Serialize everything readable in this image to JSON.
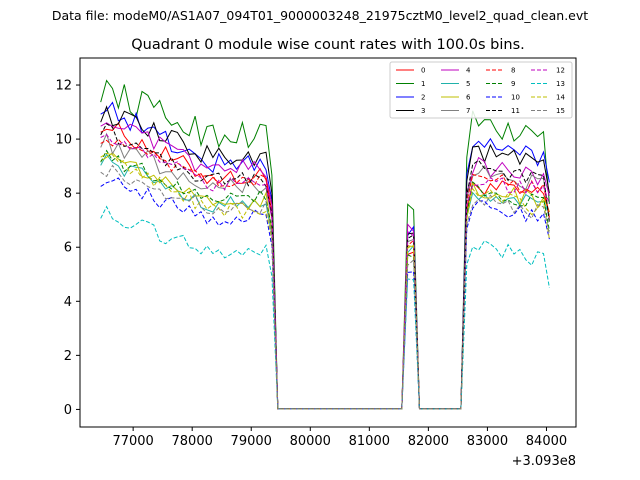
{
  "chart_data": {
    "type": "line",
    "suptitle": "Data file: modeM0/AS1A07_094T01_9000003248_21975cztM0_level2_quad_clean.evt",
    "title": "Quadrant 0 module wise count rates with 100.0s bins.",
    "xlabel": "",
    "ylabel": "",
    "x_offset_label": "+3.093e8",
    "xlim": [
      76100,
      84500
    ],
    "ylim": [
      -0.65,
      13.0
    ],
    "x_ticks": [
      77000,
      78000,
      79000,
      80000,
      81000,
      82000,
      83000,
      84000
    ],
    "x_tick_labels": [
      "77000",
      "78000",
      "79000",
      "80000",
      "81000",
      "82000",
      "83000",
      "84000"
    ],
    "y_ticks": [
      0,
      2,
      4,
      6,
      8,
      10,
      12
    ],
    "y_tick_labels": [
      "0",
      "2",
      "4",
      "6",
      "8",
      "10",
      "12"
    ],
    "legend_position": "top-right",
    "legend_columns": 4,
    "segments": [
      {
        "start": 76450,
        "end": 79350,
        "step": 100,
        "phase": "active"
      },
      {
        "start": 79450,
        "end": 81550,
        "step": 100,
        "phase": "gap"
      },
      {
        "start": 81650,
        "end": 81750,
        "step": 100,
        "phase": "active"
      },
      {
        "start": 81850,
        "end": 82550,
        "step": 100,
        "phase": "gap"
      },
      {
        "start": 82650,
        "end": 84050,
        "step": 100,
        "phase": "active"
      }
    ],
    "series": [
      {
        "name": "0",
        "color": "#ff0000",
        "dashed": false,
        "start_level": 10.6,
        "mid_level": 8.6,
        "spike_level": 5.8,
        "end_level": 8.4,
        "final": 7.3,
        "noise": 0.35
      },
      {
        "name": "1",
        "color": "#008000",
        "dashed": false,
        "start_level": 11.9,
        "mid_level": 10.2,
        "spike_level": 7.5,
        "end_level": 10.6,
        "final": 7.6,
        "noise": 0.55
      },
      {
        "name": "2",
        "color": "#0000ff",
        "dashed": false,
        "start_level": 11.3,
        "mid_level": 9.1,
        "spike_level": 6.6,
        "end_level": 9.9,
        "final": 8.4,
        "noise": 0.4
      },
      {
        "name": "3",
        "color": "#000000",
        "dashed": false,
        "start_level": 11.0,
        "mid_level": 9.4,
        "spike_level": 6.5,
        "end_level": 9.6,
        "final": 8.0,
        "noise": 0.4
      },
      {
        "name": "4",
        "color": "#bf00bf",
        "dashed": false,
        "start_level": 10.8,
        "mid_level": 8.9,
        "spike_level": 6.7,
        "end_level": 9.1,
        "final": 7.9,
        "noise": 0.35
      },
      {
        "name": "5",
        "color": "#20b2aa",
        "dashed": false,
        "start_level": 9.3,
        "mid_level": 7.6,
        "spike_level": 5.9,
        "end_level": 8.1,
        "final": 7.2,
        "noise": 0.3
      },
      {
        "name": "6",
        "color": "#bfbf00",
        "dashed": false,
        "start_level": 9.5,
        "mid_level": 7.7,
        "spike_level": 6.0,
        "end_level": 8.2,
        "final": 7.3,
        "noise": 0.35
      },
      {
        "name": "7",
        "color": "#808080",
        "dashed": false,
        "start_level": 10.0,
        "mid_level": 8.3,
        "spike_level": 6.4,
        "end_level": 8.9,
        "final": 7.0,
        "noise": 0.35
      },
      {
        "name": "8",
        "color": "#ff0000",
        "dashed": true,
        "start_level": 10.1,
        "mid_level": 8.4,
        "spike_level": 6.1,
        "end_level": 8.7,
        "final": 7.1,
        "noise": 0.3
      },
      {
        "name": "9",
        "color": "#008000",
        "dashed": true,
        "start_level": 9.4,
        "mid_level": 7.9,
        "spike_level": 5.6,
        "end_level": 8.2,
        "final": 6.6,
        "noise": 0.3
      },
      {
        "name": "10",
        "color": "#0000ff",
        "dashed": true,
        "start_level": 8.5,
        "mid_level": 7.1,
        "spike_level": 5.2,
        "end_level": 7.6,
        "final": 6.3,
        "noise": 0.3
      },
      {
        "name": "11",
        "color": "#000000",
        "dashed": true,
        "start_level": 10.4,
        "mid_level": 8.5,
        "spike_level": 6.3,
        "end_level": 9.0,
        "final": 6.9,
        "noise": 0.3
      },
      {
        "name": "12",
        "color": "#bf00bf",
        "dashed": true,
        "start_level": 10.3,
        "mid_level": 8.3,
        "spike_level": 6.4,
        "end_level": 8.6,
        "final": 7.6,
        "noise": 0.3
      },
      {
        "name": "13",
        "color": "#00bfbf",
        "dashed": true,
        "start_level": 7.3,
        "mid_level": 5.8,
        "spike_level": 4.9,
        "end_level": 6.1,
        "final": 4.5,
        "noise": 0.3
      },
      {
        "name": "14",
        "color": "#bfbf00",
        "dashed": true,
        "start_level": 9.6,
        "mid_level": 7.4,
        "spike_level": 5.9,
        "end_level": 8.0,
        "final": 6.3,
        "noise": 0.35
      },
      {
        "name": "15",
        "color": "#808080",
        "dashed": true,
        "start_level": 9.0,
        "mid_level": 7.5,
        "spike_level": 5.5,
        "end_level": 7.8,
        "final": 6.5,
        "noise": 0.3
      }
    ]
  }
}
